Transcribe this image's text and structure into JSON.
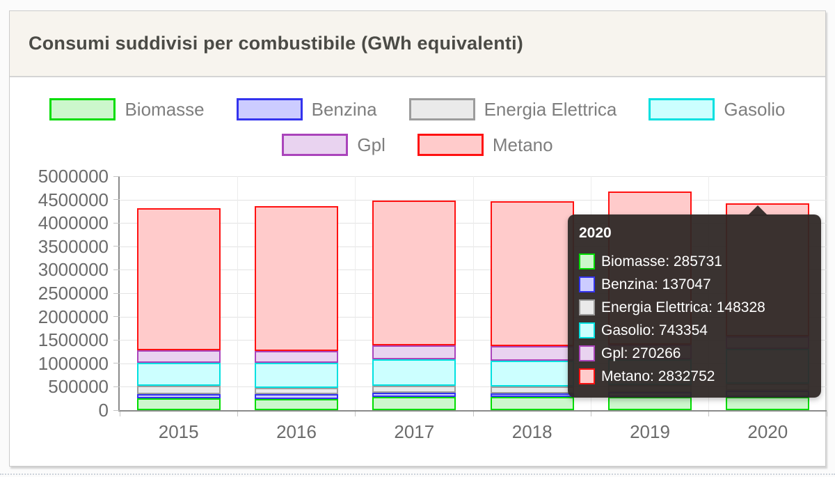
{
  "header": {
    "title": "Consumi suddivisi per combustibile (GWh equivalenti)"
  },
  "chart_data": {
    "type": "bar",
    "stacked": true,
    "title": "Consumi suddivisi per combustibile (GWh equivalenti)",
    "xlabel": "",
    "ylabel": "",
    "grid": true,
    "legend_position": "top",
    "categories": [
      "2015",
      "2016",
      "2017",
      "2018",
      "2019",
      "2020"
    ],
    "ylim": [
      0,
      5000000
    ],
    "y_ticks": [
      "0",
      "500000",
      "1000000",
      "1500000",
      "2000000",
      "2500000",
      "3000000",
      "3500000",
      "4000000",
      "4500000",
      "5000000"
    ],
    "series": [
      {
        "name": "Biomasse",
        "stroke": "#00dd00",
        "fill": "#ccf7cc",
        "values": [
          253000,
          243000,
          278000,
          278000,
          283000,
          285731
        ]
      },
      {
        "name": "Benzina",
        "stroke": "#3333ee",
        "fill": "#ccccff",
        "values": [
          89000,
          100000,
          98000,
          79000,
          100000,
          137047
        ]
      },
      {
        "name": "Energia Elettrica",
        "stroke": "#9c9c9c",
        "fill": "#eaeaea",
        "values": [
          183000,
          134000,
          149000,
          149000,
          150000,
          148328
        ]
      },
      {
        "name": "Gasolio",
        "stroke": "#00e0e0",
        "fill": "#ccffff",
        "values": [
          487000,
          536000,
          561000,
          555000,
          560000,
          743354
        ]
      },
      {
        "name": "Gpl",
        "stroke": "#aa44bb",
        "fill": "#e9d3f0",
        "values": [
          272000,
          257000,
          298000,
          308000,
          300000,
          270266
        ]
      },
      {
        "name": "Metano",
        "stroke": "#ff1111",
        "fill": "#ffcbcb",
        "values": [
          3039000,
          3091000,
          3091000,
          3091000,
          3280000,
          2832752
        ]
      }
    ]
  },
  "tooltip": {
    "title": "2020",
    "rows": [
      {
        "label": "Biomasse",
        "value": "285731"
      },
      {
        "label": "Benzina",
        "value": "137047"
      },
      {
        "label": "Energia Elettrica",
        "value": "148328"
      },
      {
        "label": "Gasolio",
        "value": "743354"
      },
      {
        "label": "Gpl",
        "value": "270266"
      },
      {
        "label": "Metano",
        "value": "2832752"
      }
    ]
  }
}
